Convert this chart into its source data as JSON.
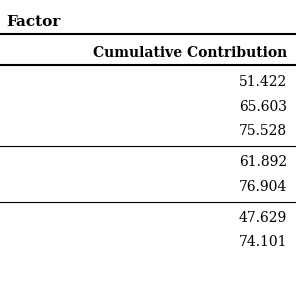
{
  "title": "Factor",
  "header": "Cumulative Contribution",
  "groups": [
    [
      "51.422",
      "65.603",
      "75.528"
    ],
    [
      "61.892",
      "76.904"
    ],
    [
      "47.629",
      "74.101"
    ]
  ],
  "bg_color": "#ffffff",
  "text_color": "#000000",
  "title_fontsize": 11,
  "header_fontsize": 10,
  "data_fontsize": 10
}
